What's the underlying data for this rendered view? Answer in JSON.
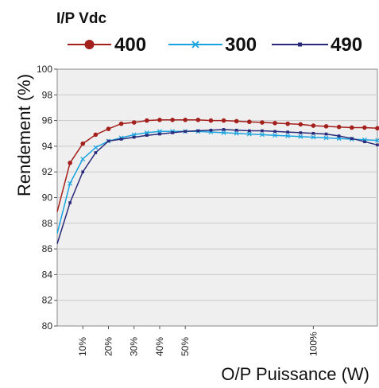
{
  "chart_data": {
    "type": "line",
    "legend_title": "I/P Vdc",
    "legend_position": "top",
    "ylabel": "Rendement (%)",
    "xlabel": "O/P Puissance (W)",
    "ylim": [
      80,
      100
    ],
    "yticks": [
      80,
      82,
      84,
      86,
      88,
      90,
      92,
      94,
      96,
      98,
      100
    ],
    "xlim": [
      0,
      125
    ],
    "xticks": [
      {
        "x": 10,
        "label": "10%"
      },
      {
        "x": 20,
        "label": "20%"
      },
      {
        "x": 30,
        "label": "30%"
      },
      {
        "x": 40,
        "label": "40%"
      },
      {
        "x": 50,
        "label": "50%"
      },
      {
        "x": 100,
        "label": "100%"
      }
    ],
    "grid": true,
    "plot_background": "#efefef",
    "series": [
      {
        "name": "400",
        "color": "#a4201c",
        "marker": "circle",
        "legend_marker": "circle",
        "x": [
          0,
          5,
          10,
          15,
          20,
          25,
          30,
          35,
          40,
          45,
          50,
          55,
          60,
          65,
          70,
          75,
          80,
          85,
          90,
          95,
          100,
          105,
          110,
          115,
          120,
          125
        ],
        "y": [
          88.9,
          92.7,
          94.2,
          94.9,
          95.35,
          95.75,
          95.85,
          96.0,
          96.05,
          96.05,
          96.05,
          96.05,
          96.0,
          96.0,
          95.95,
          95.9,
          95.85,
          95.8,
          95.75,
          95.7,
          95.6,
          95.55,
          95.5,
          95.45,
          95.45,
          95.4
        ]
      },
      {
        "name": "300",
        "color": "#1aa3e0",
        "marker": "x",
        "legend_marker": "x",
        "x": [
          0,
          5,
          10,
          15,
          20,
          25,
          30,
          35,
          40,
          45,
          50,
          55,
          60,
          65,
          70,
          75,
          80,
          85,
          90,
          95,
          100,
          105,
          110,
          115,
          120,
          125
        ],
        "y": [
          87.2,
          91.1,
          93.0,
          93.9,
          94.4,
          94.65,
          94.9,
          95.05,
          95.15,
          95.15,
          95.15,
          95.15,
          95.1,
          95.05,
          95.0,
          94.95,
          94.9,
          94.85,
          94.8,
          94.75,
          94.7,
          94.65,
          94.6,
          94.55,
          94.5,
          94.45
        ]
      },
      {
        "name": "490",
        "color": "#2a2a7a",
        "marker": "square",
        "legend_marker": "square",
        "x": [
          0,
          5,
          10,
          15,
          20,
          25,
          30,
          35,
          40,
          45,
          50,
          55,
          60,
          65,
          70,
          75,
          80,
          85,
          90,
          95,
          100,
          105,
          110,
          115,
          120,
          125
        ],
        "y": [
          86.4,
          89.6,
          92.0,
          93.5,
          94.4,
          94.55,
          94.7,
          94.85,
          94.95,
          95.05,
          95.15,
          95.2,
          95.25,
          95.3,
          95.25,
          95.2,
          95.2,
          95.15,
          95.1,
          95.05,
          95.0,
          94.95,
          94.8,
          94.6,
          94.35,
          94.1
        ]
      }
    ]
  }
}
